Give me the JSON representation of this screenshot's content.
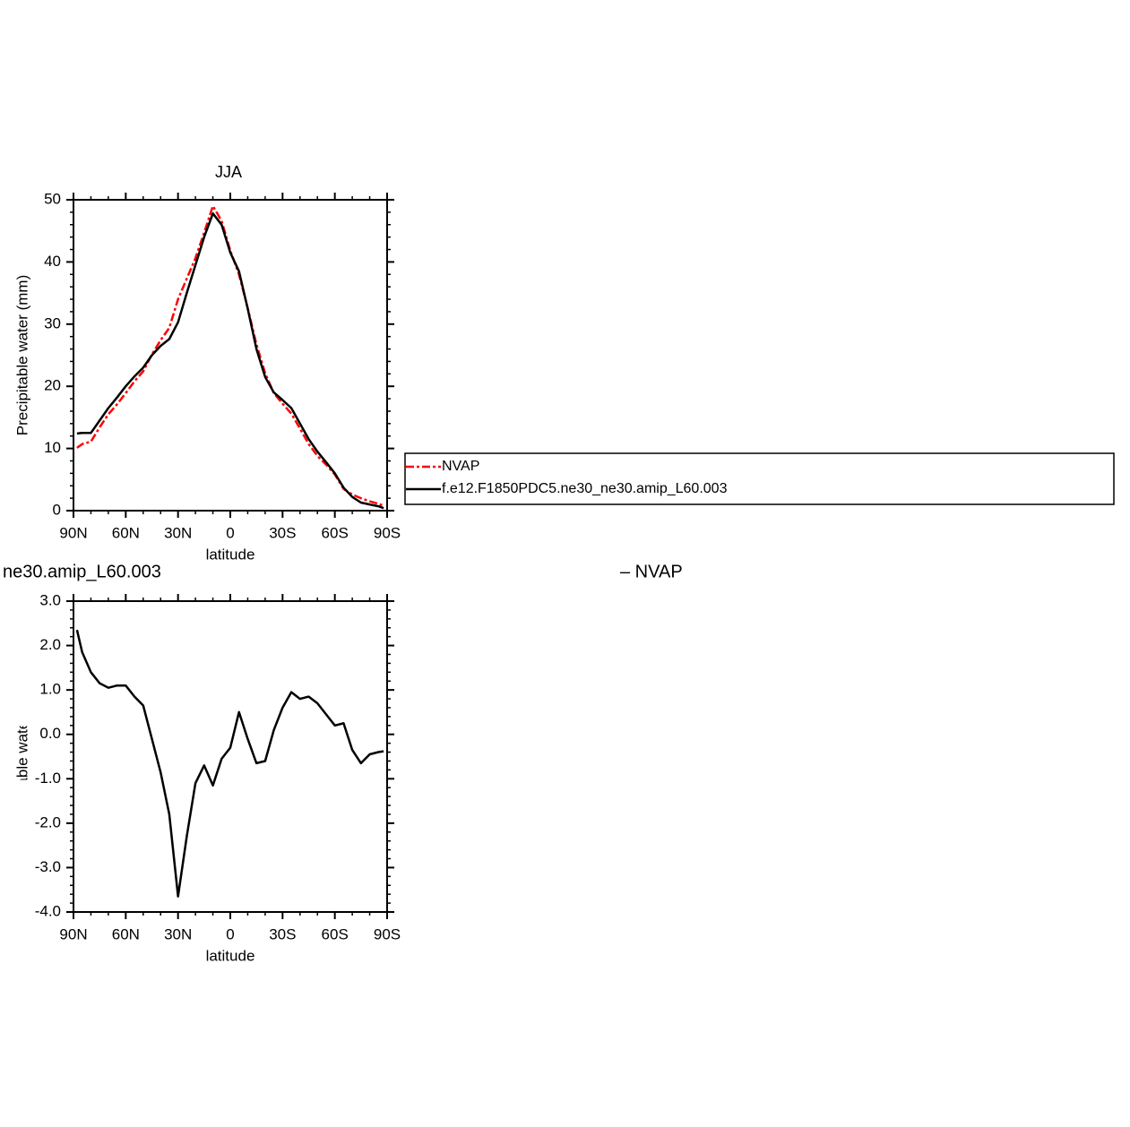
{
  "chart_data": [
    {
      "type": "line",
      "title": "JJA",
      "x_label": "latitude",
      "y_label": "Precipitable water (mm)",
      "x": [
        88,
        85,
        80,
        75,
        70,
        65,
        60,
        55,
        50,
        45,
        40,
        35,
        30,
        25,
        20,
        15,
        10,
        5,
        0,
        -5,
        -10,
        -15,
        -20,
        -25,
        -30,
        -35,
        -40,
        -45,
        -50,
        -55,
        -60,
        -65,
        -70,
        -75,
        -80,
        -85,
        -88
      ],
      "xlim": [
        90,
        -90
      ],
      "xticks": [
        {
          "value": 90,
          "label": "90N"
        },
        {
          "value": 60,
          "label": "60N"
        },
        {
          "value": 30,
          "label": "30N"
        },
        0,
        {
          "value": -30,
          "label": "30S"
        },
        {
          "value": -60,
          "label": "60S"
        },
        {
          "value": -90,
          "label": "90S"
        }
      ],
      "x_minor_step": 10,
      "ylim": [
        0,
        50
      ],
      "yticks": [
        0,
        10,
        20,
        30,
        40,
        50
      ],
      "y_minor_step": 2,
      "legend": "right",
      "series": [
        {
          "name": "NVAP",
          "color": "#ff0000",
          "dashed": true,
          "values": [
            10.1,
            10.7,
            11.1,
            13.4,
            15.5,
            17.1,
            18.9,
            20.8,
            22.4,
            25.1,
            27.4,
            29.4,
            34.0,
            37.3,
            40.6,
            44.7,
            49.0,
            46.6,
            41.8,
            38.0,
            32.6,
            26.7,
            22.1,
            18.9,
            17.2,
            15.6,
            13.2,
            10.7,
            8.8,
            7.4,
            5.8,
            3.5,
            2.6,
            2.0,
            1.5,
            1.1,
            0.8
          ]
        },
        {
          "name": "f.e12.F1850PDC5.ne30_ne30.amip_L60.003",
          "color": "#000000",
          "dashed": false,
          "values": [
            12.4,
            12.5,
            12.5,
            14.5,
            16.5,
            18.2,
            20.0,
            21.6,
            23.0,
            25.0,
            26.5,
            27.6,
            30.3,
            35.0,
            39.5,
            44.0,
            47.8,
            46.0,
            41.5,
            38.5,
            32.5,
            26.0,
            21.5,
            19.0,
            17.8,
            16.5,
            14.0,
            11.5,
            9.5,
            7.8,
            6.0,
            3.7,
            2.2,
            1.3,
            1.0,
            0.7,
            0.4
          ]
        }
      ]
    },
    {
      "type": "line",
      "title": "ne30.amip_L60.003",
      "subtitle": "– NVAP",
      "x_label": "latitude",
      "y_label": "Precipitable water (mm)",
      "x": [
        88,
        85,
        80,
        75,
        70,
        65,
        60,
        55,
        50,
        45,
        40,
        35,
        30,
        25,
        20,
        15,
        10,
        5,
        0,
        -5,
        -10,
        -15,
        -20,
        -25,
        -30,
        -35,
        -40,
        -45,
        -50,
        -55,
        -60,
        -65,
        -70,
        -75,
        -80,
        -85,
        -88
      ],
      "xlim": [
        90,
        -90
      ],
      "xticks": [
        {
          "value": 90,
          "label": "90N"
        },
        {
          "value": 60,
          "label": "60N"
        },
        {
          "value": 30,
          "label": "30N"
        },
        0,
        {
          "value": -30,
          "label": "30S"
        },
        {
          "value": -60,
          "label": "60S"
        },
        {
          "value": -90,
          "label": "90S"
        }
      ],
      "x_minor_step": 10,
      "ylim": [
        -4,
        3
      ],
      "yticks": [
        {
          "value": -4,
          "label": "-4.0"
        },
        {
          "value": -3,
          "label": "-3.0"
        },
        {
          "value": -2,
          "label": "-2.0"
        },
        {
          "value": -1,
          "label": "-1.0"
        },
        {
          "value": 0,
          "label": "0.0"
        },
        {
          "value": 1,
          "label": "1.0"
        },
        {
          "value": 2,
          "label": "2.0"
        },
        {
          "value": 3,
          "label": "3.0"
        }
      ],
      "y_minor_step": 0.2,
      "series": [
        {
          "color": "#000000",
          "dashed": false,
          "values": [
            2.35,
            1.85,
            1.4,
            1.15,
            1.05,
            1.1,
            1.1,
            0.85,
            0.65,
            -0.1,
            -0.85,
            -1.8,
            -3.65,
            -2.3,
            -1.1,
            -0.7,
            -1.15,
            -0.55,
            -0.3,
            0.5,
            -0.1,
            -0.65,
            -0.6,
            0.1,
            0.6,
            0.95,
            0.8,
            0.85,
            0.7,
            0.45,
            0.2,
            0.25,
            -0.35,
            -0.65,
            -0.45,
            -0.4,
            -0.38
          ]
        }
      ]
    }
  ]
}
